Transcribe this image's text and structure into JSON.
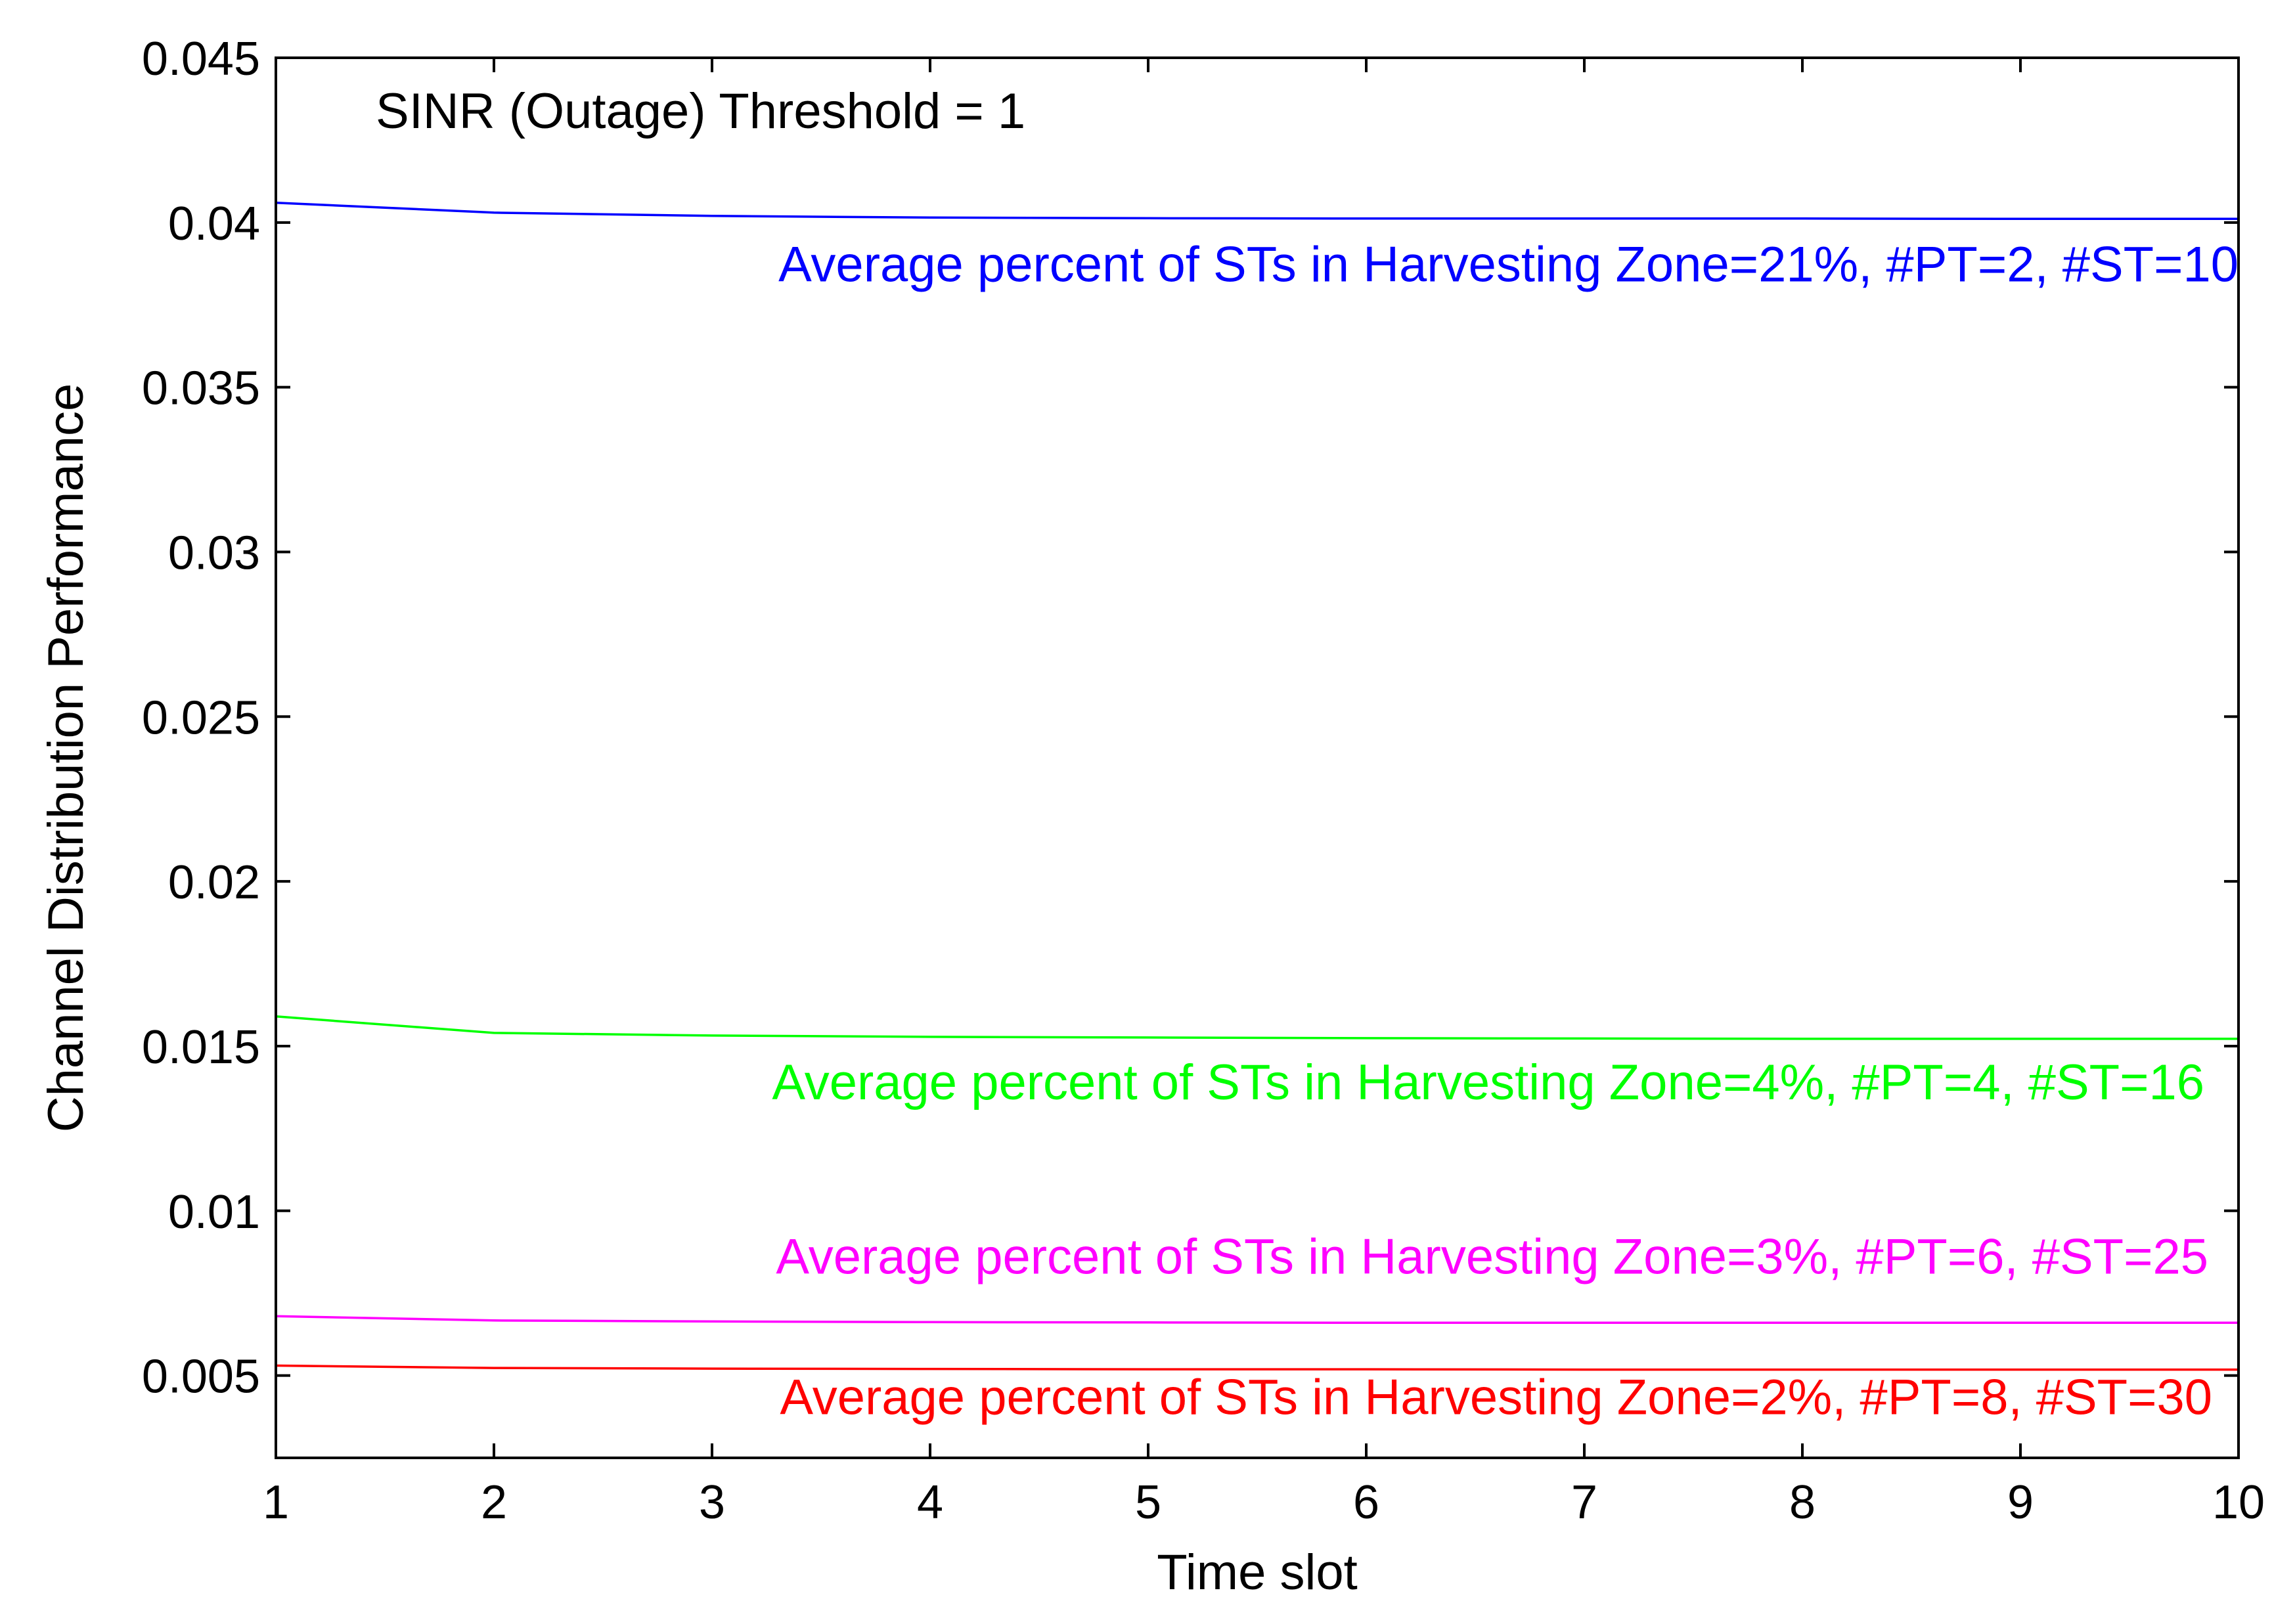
{
  "chart_data": {
    "type": "line",
    "title": "",
    "xlabel": "Time slot",
    "ylabel": "Channel Distribution Performance",
    "xlim": [
      1,
      10
    ],
    "ylim": [
      0.0025,
      0.045
    ],
    "xticks": [
      1,
      2,
      3,
      4,
      5,
      6,
      7,
      8,
      9,
      10
    ],
    "xtick_labels": [
      "1",
      "2",
      "3",
      "4",
      "5",
      "6",
      "7",
      "8",
      "9",
      "10"
    ],
    "yticks": [
      0.005,
      0.01,
      0.015,
      0.02,
      0.025,
      0.03,
      0.035,
      0.04,
      0.045
    ],
    "ytick_labels": [
      "0.005",
      "0.01",
      "0.015",
      "0.02",
      "0.025",
      "0.03",
      "0.035",
      "0.04",
      "0.045"
    ],
    "grid": false,
    "annotation": "SINR (Outage) Threshold = 1",
    "x": [
      1,
      2,
      3,
      4,
      5,
      6,
      7,
      8,
      9,
      10
    ],
    "series": [
      {
        "name": "Average percent of STs in Harvesting Zone=21%, #PT=2, #ST=10",
        "color": "#0000ff",
        "values": [
          0.0406,
          0.0403,
          0.0402,
          0.04015,
          0.04013,
          0.04012,
          0.04012,
          0.04012,
          0.04011,
          0.04011
        ]
      },
      {
        "name": "Average percent of STs in Harvesting Zone=4%, #PT=4, #ST=16",
        "color": "#00ff00",
        "values": [
          0.0159,
          0.0154,
          0.01532,
          0.01528,
          0.01526,
          0.01524,
          0.01523,
          0.01522,
          0.01522,
          0.01522
        ]
      },
      {
        "name": "Average percent of STs in Harvesting Zone=3%, #PT=6, #ST=25",
        "color": "#ff00ff",
        "values": [
          0.0068,
          0.00667,
          0.00664,
          0.00662,
          0.00661,
          0.0066,
          0.0066,
          0.0066,
          0.0066,
          0.0066
        ]
      },
      {
        "name": "Average percent of STs in Harvesting Zone=2%, #PT=8, #ST=30",
        "color": "#ff0000",
        "values": [
          0.0053,
          0.00523,
          0.00521,
          0.0052,
          0.00519,
          0.00519,
          0.00518,
          0.00518,
          0.00518,
          0.00518
        ]
      }
    ]
  }
}
